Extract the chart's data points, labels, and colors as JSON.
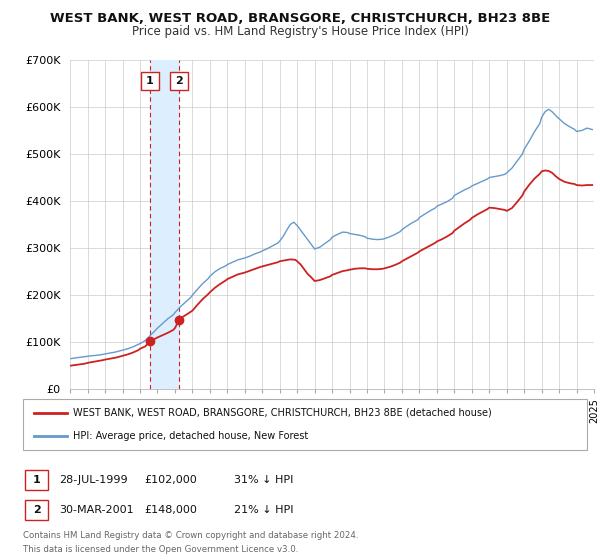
{
  "title": "WEST BANK, WEST ROAD, BRANSGORE, CHRISTCHURCH, BH23 8BE",
  "subtitle": "Price paid vs. HM Land Registry's House Price Index (HPI)",
  "legend_line1": "WEST BANK, WEST ROAD, BRANSGORE, CHRISTCHURCH, BH23 8BE (detached house)",
  "legend_line2": "HPI: Average price, detached house, New Forest",
  "footnote1": "Contains HM Land Registry data © Crown copyright and database right 2024.",
  "footnote2": "This data is licensed under the Open Government Licence v3.0.",
  "sale1_date": "28-JUL-1999",
  "sale1_price": "£102,000",
  "sale1_hpi": "31% ↓ HPI",
  "sale2_date": "30-MAR-2001",
  "sale2_price": "£148,000",
  "sale2_hpi": "21% ↓ HPI",
  "sale1_x": 1999.57,
  "sale1_y": 102000,
  "sale2_x": 2001.25,
  "sale2_y": 148000,
  "vline1_x": 1999.57,
  "vline2_x": 2001.25,
  "hpi_color": "#6699cc",
  "price_color": "#cc2222",
  "marker_color": "#cc2222",
  "shading_color": "#ddeeff",
  "background_color": "#ffffff",
  "grid_color": "#cccccc",
  "ylim": [
    0,
    700000
  ],
  "xlim": [
    1995,
    2025
  ],
  "yticks": [
    0,
    100000,
    200000,
    300000,
    400000,
    500000,
    600000,
    700000
  ],
  "ytick_labels": [
    "£0",
    "£100K",
    "£200K",
    "£300K",
    "£400K",
    "£500K",
    "£600K",
    "£700K"
  ],
  "xticks": [
    1995,
    1996,
    1997,
    1998,
    1999,
    2000,
    2001,
    2002,
    2003,
    2004,
    2005,
    2006,
    2007,
    2008,
    2009,
    2010,
    2011,
    2012,
    2013,
    2014,
    2015,
    2016,
    2017,
    2018,
    2019,
    2020,
    2021,
    2022,
    2023,
    2024,
    2025
  ],
  "hpi_data": [
    [
      1995.04,
      65000
    ],
    [
      1995.2,
      66000
    ],
    [
      1995.4,
      67000
    ],
    [
      1995.6,
      68000
    ],
    [
      1995.8,
      69000
    ],
    [
      1996.0,
      70000
    ],
    [
      1996.2,
      71000
    ],
    [
      1996.5,
      72000
    ],
    [
      1996.8,
      73500
    ],
    [
      1997.0,
      75000
    ],
    [
      1997.3,
      77000
    ],
    [
      1997.6,
      79000
    ],
    [
      1998.0,
      83000
    ],
    [
      1998.3,
      86000
    ],
    [
      1998.6,
      90000
    ],
    [
      1999.0,
      97000
    ],
    [
      1999.2,
      101000
    ],
    [
      1999.4,
      107000
    ],
    [
      1999.6,
      115000
    ],
    [
      1999.8,
      122000
    ],
    [
      2000.0,
      130000
    ],
    [
      2000.3,
      140000
    ],
    [
      2000.6,
      150000
    ],
    [
      2000.9,
      158000
    ],
    [
      2001.0,
      163000
    ],
    [
      2001.3,
      175000
    ],
    [
      2001.6,
      185000
    ],
    [
      2001.9,
      195000
    ],
    [
      2002.0,
      200000
    ],
    [
      2002.3,
      213000
    ],
    [
      2002.6,
      225000
    ],
    [
      2002.9,
      235000
    ],
    [
      2003.0,
      240000
    ],
    [
      2003.3,
      250000
    ],
    [
      2003.6,
      257000
    ],
    [
      2003.9,
      262000
    ],
    [
      2004.0,
      265000
    ],
    [
      2004.3,
      270000
    ],
    [
      2004.6,
      275000
    ],
    [
      2004.9,
      278000
    ],
    [
      2005.0,
      279000
    ],
    [
      2005.3,
      283000
    ],
    [
      2005.6,
      288000
    ],
    [
      2005.9,
      292000
    ],
    [
      2006.0,
      294000
    ],
    [
      2006.3,
      299000
    ],
    [
      2006.6,
      305000
    ],
    [
      2006.9,
      311000
    ],
    [
      2007.0,
      315000
    ],
    [
      2007.2,
      325000
    ],
    [
      2007.4,
      338000
    ],
    [
      2007.6,
      350000
    ],
    [
      2007.8,
      355000
    ],
    [
      2008.0,
      348000
    ],
    [
      2008.2,
      338000
    ],
    [
      2008.4,
      328000
    ],
    [
      2008.6,
      318000
    ],
    [
      2008.8,
      308000
    ],
    [
      2009.0,
      298000
    ],
    [
      2009.3,
      302000
    ],
    [
      2009.6,
      310000
    ],
    [
      2009.9,
      318000
    ],
    [
      2010.0,
      323000
    ],
    [
      2010.3,
      329000
    ],
    [
      2010.6,
      334000
    ],
    [
      2010.9,
      333000
    ],
    [
      2011.0,
      331000
    ],
    [
      2011.3,
      329000
    ],
    [
      2011.6,
      327000
    ],
    [
      2011.9,
      324000
    ],
    [
      2012.0,
      321000
    ],
    [
      2012.3,
      319000
    ],
    [
      2012.6,
      318000
    ],
    [
      2012.9,
      319000
    ],
    [
      2013.0,
      320000
    ],
    [
      2013.3,
      324000
    ],
    [
      2013.6,
      329000
    ],
    [
      2013.9,
      335000
    ],
    [
      2014.0,
      339000
    ],
    [
      2014.3,
      347000
    ],
    [
      2014.6,
      354000
    ],
    [
      2014.9,
      360000
    ],
    [
      2015.0,
      365000
    ],
    [
      2015.3,
      372000
    ],
    [
      2015.6,
      379000
    ],
    [
      2015.9,
      385000
    ],
    [
      2016.0,
      389000
    ],
    [
      2016.3,
      394000
    ],
    [
      2016.6,
      399000
    ],
    [
      2016.9,
      406000
    ],
    [
      2017.0,
      412000
    ],
    [
      2017.3,
      418000
    ],
    [
      2017.6,
      424000
    ],
    [
      2017.9,
      429000
    ],
    [
      2018.0,
      432000
    ],
    [
      2018.3,
      437000
    ],
    [
      2018.6,
      442000
    ],
    [
      2018.9,
      447000
    ],
    [
      2019.0,
      450000
    ],
    [
      2019.3,
      452000
    ],
    [
      2019.6,
      454000
    ],
    [
      2019.9,
      457000
    ],
    [
      2020.0,
      460000
    ],
    [
      2020.3,
      470000
    ],
    [
      2020.6,
      485000
    ],
    [
      2020.9,
      500000
    ],
    [
      2021.0,
      510000
    ],
    [
      2021.3,
      528000
    ],
    [
      2021.6,
      548000
    ],
    [
      2021.9,
      565000
    ],
    [
      2022.0,
      578000
    ],
    [
      2022.2,
      590000
    ],
    [
      2022.4,
      595000
    ],
    [
      2022.6,
      590000
    ],
    [
      2022.8,
      582000
    ],
    [
      2023.0,
      575000
    ],
    [
      2023.3,
      565000
    ],
    [
      2023.6,
      558000
    ],
    [
      2023.9,
      552000
    ],
    [
      2024.0,
      548000
    ],
    [
      2024.3,
      550000
    ],
    [
      2024.6,
      555000
    ],
    [
      2024.9,
      552000
    ]
  ],
  "price_data": [
    [
      1995.04,
      50000
    ],
    [
      1995.2,
      51000
    ],
    [
      1995.4,
      52000
    ],
    [
      1995.6,
      53000
    ],
    [
      1995.8,
      54000
    ],
    [
      1996.0,
      56000
    ],
    [
      1996.3,
      58000
    ],
    [
      1996.6,
      60000
    ],
    [
      1996.9,
      62000
    ],
    [
      1997.0,
      63000
    ],
    [
      1997.3,
      65000
    ],
    [
      1997.6,
      67000
    ],
    [
      1997.9,
      70000
    ],
    [
      1998.0,
      71000
    ],
    [
      1998.3,
      74000
    ],
    [
      1998.6,
      78000
    ],
    [
      1998.9,
      83000
    ],
    [
      1999.0,
      86000
    ],
    [
      1999.3,
      91000
    ],
    [
      1999.57,
      102000
    ],
    [
      1999.8,
      106000
    ],
    [
      2000.0,
      110000
    ],
    [
      2000.3,
      115000
    ],
    [
      2000.6,
      120000
    ],
    [
      2000.9,
      126000
    ],
    [
      2001.0,
      130000
    ],
    [
      2001.25,
      148000
    ],
    [
      2001.5,
      155000
    ],
    [
      2001.8,
      162000
    ],
    [
      2002.0,
      167000
    ],
    [
      2002.3,
      180000
    ],
    [
      2002.6,
      192000
    ],
    [
      2002.9,
      202000
    ],
    [
      2003.0,
      206000
    ],
    [
      2003.3,
      216000
    ],
    [
      2003.6,
      224000
    ],
    [
      2003.9,
      231000
    ],
    [
      2004.0,
      234000
    ],
    [
      2004.3,
      239000
    ],
    [
      2004.6,
      244000
    ],
    [
      2004.9,
      247000
    ],
    [
      2005.0,
      248000
    ],
    [
      2005.3,
      252000
    ],
    [
      2005.6,
      256000
    ],
    [
      2005.9,
      260000
    ],
    [
      2006.0,
      261000
    ],
    [
      2006.3,
      264000
    ],
    [
      2006.6,
      267000
    ],
    [
      2006.9,
      270000
    ],
    [
      2007.0,
      272000
    ],
    [
      2007.3,
      274000
    ],
    [
      2007.6,
      276000
    ],
    [
      2007.9,
      275000
    ],
    [
      2008.0,
      272000
    ],
    [
      2008.2,
      265000
    ],
    [
      2008.4,
      255000
    ],
    [
      2008.6,
      245000
    ],
    [
      2008.8,
      238000
    ],
    [
      2009.0,
      230000
    ],
    [
      2009.3,
      232000
    ],
    [
      2009.6,
      236000
    ],
    [
      2009.9,
      240000
    ],
    [
      2010.0,
      243000
    ],
    [
      2010.3,
      247000
    ],
    [
      2010.6,
      251000
    ],
    [
      2010.9,
      253000
    ],
    [
      2011.0,
      254000
    ],
    [
      2011.3,
      256000
    ],
    [
      2011.6,
      257000
    ],
    [
      2011.9,
      257000
    ],
    [
      2012.0,
      256000
    ],
    [
      2012.3,
      255000
    ],
    [
      2012.6,
      255000
    ],
    [
      2012.9,
      256000
    ],
    [
      2013.0,
      257000
    ],
    [
      2013.3,
      260000
    ],
    [
      2013.6,
      264000
    ],
    [
      2013.9,
      269000
    ],
    [
      2014.0,
      272000
    ],
    [
      2014.3,
      278000
    ],
    [
      2014.6,
      284000
    ],
    [
      2014.9,
      290000
    ],
    [
      2015.0,
      293000
    ],
    [
      2015.3,
      299000
    ],
    [
      2015.6,
      305000
    ],
    [
      2015.9,
      311000
    ],
    [
      2016.0,
      314000
    ],
    [
      2016.3,
      319000
    ],
    [
      2016.6,
      325000
    ],
    [
      2016.9,
      332000
    ],
    [
      2017.0,
      337000
    ],
    [
      2017.3,
      345000
    ],
    [
      2017.6,
      353000
    ],
    [
      2017.9,
      360000
    ],
    [
      2018.0,
      364000
    ],
    [
      2018.3,
      371000
    ],
    [
      2018.6,
      377000
    ],
    [
      2018.9,
      383000
    ],
    [
      2019.0,
      386000
    ],
    [
      2019.3,
      385000
    ],
    [
      2019.6,
      383000
    ],
    [
      2019.9,
      381000
    ],
    [
      2020.0,
      379000
    ],
    [
      2020.3,
      385000
    ],
    [
      2020.6,
      398000
    ],
    [
      2020.9,
      412000
    ],
    [
      2021.0,
      420000
    ],
    [
      2021.3,
      435000
    ],
    [
      2021.6,
      448000
    ],
    [
      2021.9,
      458000
    ],
    [
      2022.0,
      463000
    ],
    [
      2022.2,
      465000
    ],
    [
      2022.4,
      464000
    ],
    [
      2022.6,
      460000
    ],
    [
      2022.8,
      453000
    ],
    [
      2023.0,
      447000
    ],
    [
      2023.3,
      441000
    ],
    [
      2023.6,
      438000
    ],
    [
      2023.9,
      436000
    ],
    [
      2024.0,
      434000
    ],
    [
      2024.3,
      433000
    ],
    [
      2024.6,
      434000
    ],
    [
      2024.9,
      434000
    ]
  ]
}
